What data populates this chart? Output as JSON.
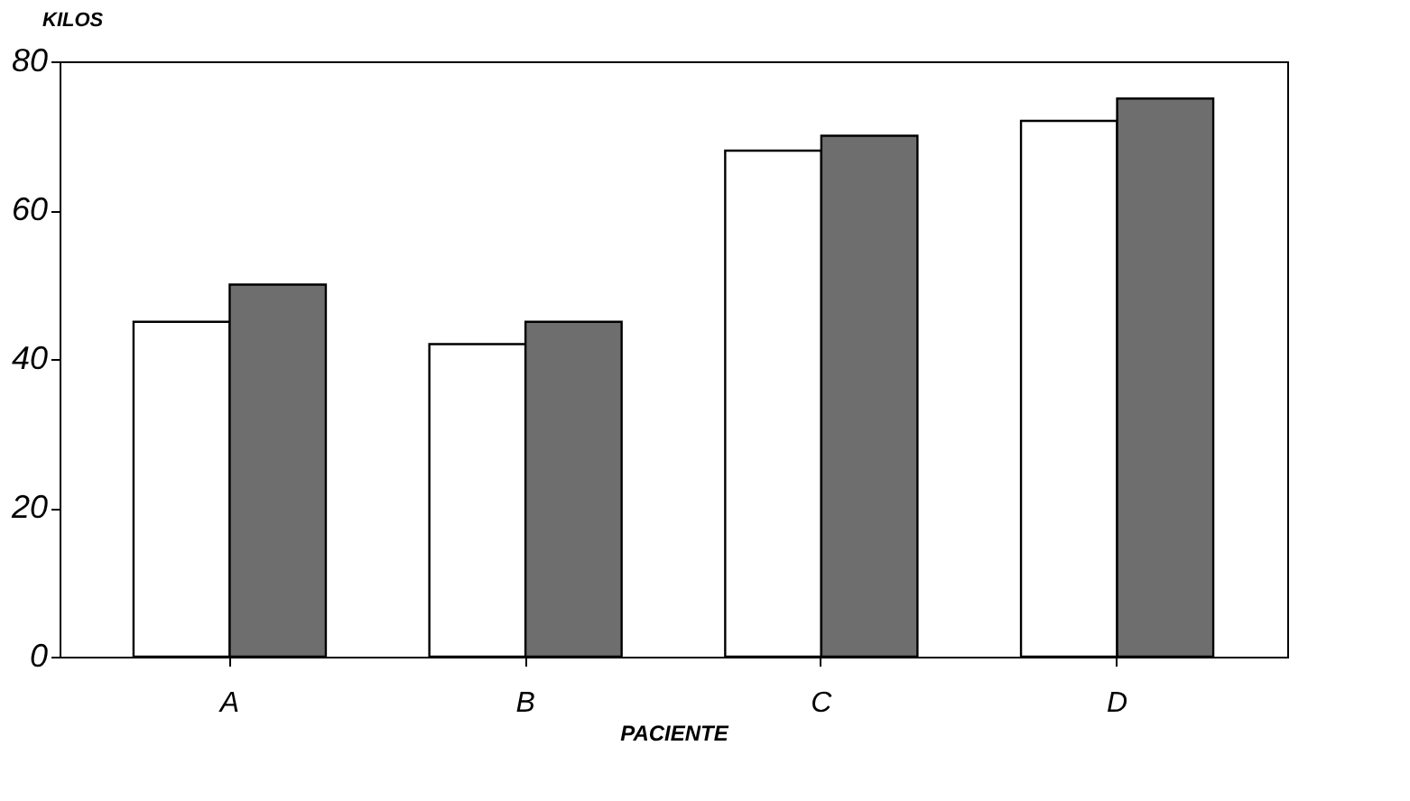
{
  "chart_data": {
    "type": "bar",
    "xlabel": "PACIENTE",
    "ylabel": "KILOS",
    "categories": [
      "A",
      "B",
      "C",
      "D"
    ],
    "series": [
      {
        "color": "#ffffff",
        "values": [
          45,
          42,
          68,
          72
        ]
      },
      {
        "color": "#6e6e6e",
        "values": [
          50,
          45,
          70,
          75
        ]
      }
    ],
    "ylim": [
      0,
      80
    ],
    "yticks": [
      0,
      20,
      40,
      60,
      80
    ],
    "grid": false,
    "legend": false
  }
}
